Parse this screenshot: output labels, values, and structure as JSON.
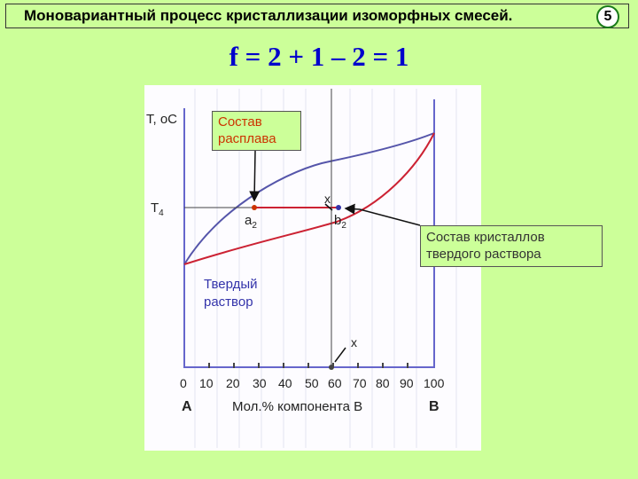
{
  "header": {
    "title": "Моновариантный процесс кристаллизации изоморфных смесей.",
    "slide_number": "5"
  },
  "formula": "f = 2 + 1 – 2 = 1",
  "diagram": {
    "y_axis_label": "T, oC",
    "t_label": "T",
    "t_sub": "4",
    "x_ticks": [
      "0",
      "10",
      "20",
      "30",
      "40",
      "50",
      "60",
      "70",
      "80",
      "90",
      "100"
    ],
    "x_axis_label": "Мол.% компонента В",
    "left_component": "A",
    "right_component": "B",
    "point_a": "a",
    "point_a_sub": "2",
    "point_b": "b",
    "point_b_sub": "2",
    "point_x_top": "x",
    "point_x_bottom": "x",
    "solid_region_line1": "Твердый",
    "solid_region_line2": "раствор",
    "callout_melt_line1": "Состав",
    "callout_melt_line2": "расплава",
    "callout_crystals_line1": "Состав кристаллов",
    "callout_crystals_line2": "твердого раствора",
    "colors": {
      "liquidus": "#5555aa",
      "solidus": "#cc2233",
      "point": "#cc3300",
      "axis": "#6666cc"
    }
  }
}
